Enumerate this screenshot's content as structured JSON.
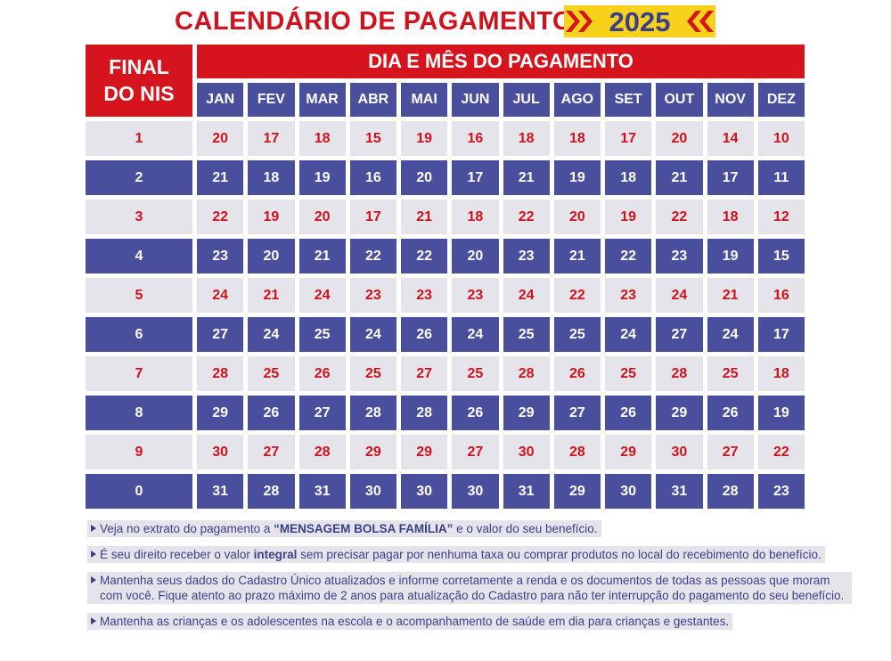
{
  "title": "CALENDÁRIO DE PAGAMENTO",
  "year": "2025",
  "header": {
    "final": "FINAL DO NIS",
    "columns_title": "DIA E MÊS DO PAGAMENTO"
  },
  "months": [
    "JAN",
    "FEV",
    "MAR",
    "ABR",
    "MAI",
    "JUN",
    "JUL",
    "AGO",
    "SET",
    "OUT",
    "NOV",
    "DEZ"
  ],
  "rows": [
    {
      "nis": 1,
      "days": [
        20,
        17,
        18,
        15,
        19,
        16,
        18,
        18,
        17,
        20,
        14,
        10
      ]
    },
    {
      "nis": 2,
      "days": [
        21,
        18,
        19,
        16,
        20,
        17,
        21,
        19,
        18,
        21,
        17,
        11
      ]
    },
    {
      "nis": 3,
      "days": [
        22,
        19,
        20,
        17,
        21,
        18,
        22,
        20,
        19,
        22,
        18,
        12
      ]
    },
    {
      "nis": 4,
      "days": [
        23,
        20,
        21,
        22,
        22,
        20,
        23,
        21,
        22,
        23,
        19,
        15
      ]
    },
    {
      "nis": 5,
      "days": [
        24,
        21,
        24,
        23,
        23,
        23,
        24,
        22,
        23,
        24,
        21,
        16
      ]
    },
    {
      "nis": 6,
      "days": [
        27,
        24,
        25,
        24,
        26,
        24,
        25,
        25,
        24,
        27,
        24,
        17
      ]
    },
    {
      "nis": 7,
      "days": [
        28,
        25,
        26,
        25,
        27,
        25,
        28,
        26,
        25,
        28,
        25,
        18
      ]
    },
    {
      "nis": 8,
      "days": [
        29,
        26,
        27,
        28,
        28,
        26,
        29,
        27,
        26,
        29,
        26,
        19
      ]
    },
    {
      "nis": 9,
      "days": [
        30,
        27,
        28,
        29,
        29,
        27,
        30,
        28,
        29,
        30,
        27,
        22
      ]
    },
    {
      "nis": 0,
      "days": [
        31,
        28,
        31,
        30,
        30,
        30,
        31,
        29,
        30,
        31,
        28,
        23
      ]
    }
  ],
  "notes": [
    {
      "parts": [
        {
          "text": "Veja no extrato do pagamento a "
        },
        {
          "text": "“MENSAGEM BOLSA FAMÍLIA”",
          "bold": true
        },
        {
          "text": " e o valor do seu benefício."
        }
      ]
    },
    {
      "parts": [
        {
          "text": "É seu direito receber o valor "
        },
        {
          "text": "integral",
          "bold": true
        },
        {
          "text": " sem precisar pagar por nenhuma taxa ou comprar produtos no local do recebimento do benefício."
        }
      ]
    },
    {
      "parts": [
        {
          "text": "Mantenha seus dados do Cadastro Único atualizados e informe corretamente a renda e os documentos de todas as pessoas que moram com você. Fique atento ao prazo máximo de 2 anos para atualização do Cadastro para não ter interrupção do pagamento do seu benefício."
        }
      ]
    },
    {
      "parts": [
        {
          "text": "Mantenha as crianças e os adolescentes na escola e o acompanhamento de saúde em dia para crianças e gestantes."
        }
      ]
    }
  ]
}
